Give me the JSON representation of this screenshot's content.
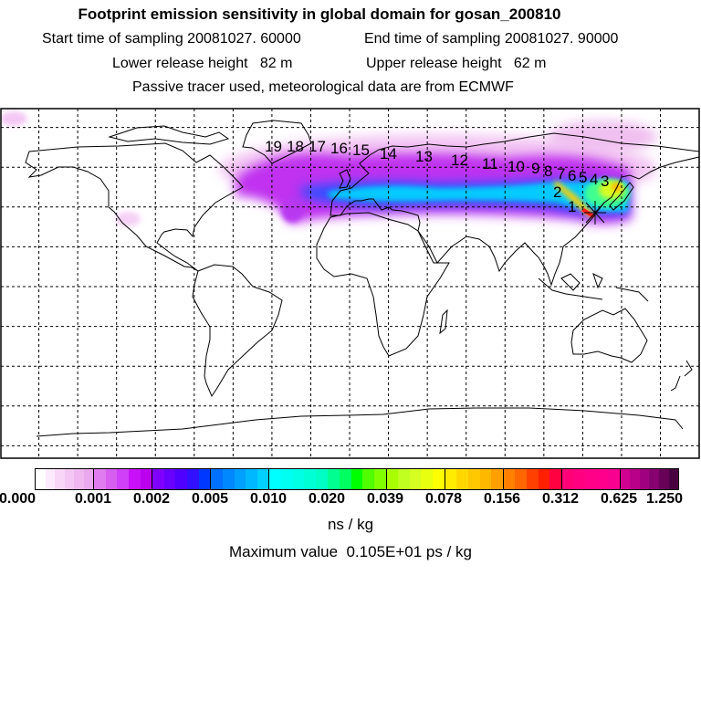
{
  "header": {
    "title": "Footprint emission sensitivity in global domain for gosan_200810",
    "start_time": "Start time of sampling 20081027. 60000",
    "end_time": "End time of sampling 20081027. 90000",
    "lower_height": "Lower release height   82 m",
    "upper_height": "Upper release height   62 m",
    "tracer_note": "Passive tracer used, meteorological data are from ECMWF"
  },
  "map": {
    "cluster_labels": [
      "1",
      "2",
      "3",
      "4",
      "5",
      "6",
      "7",
      "8",
      "9",
      "10",
      "11",
      "12",
      "13",
      "14",
      "15",
      "16",
      "17",
      "18",
      "19"
    ]
  },
  "colorbar": {
    "ticks": [
      "0.000",
      "0.001",
      "0.002",
      "0.005",
      "0.010",
      "0.020",
      "0.039",
      "0.078",
      "0.156",
      "0.312",
      "0.625",
      "1.250"
    ],
    "unit": "ns / kg",
    "colors": [
      [
        "#ffffff",
        "#fdeafd",
        "#f8d6f8",
        "#f4c6f4",
        "#efb6ef",
        "#eaa8ee"
      ],
      [
        "#e07cf0",
        "#d85ef2",
        "#d040f8",
        "#c810f8",
        "#bb00f0"
      ],
      [
        "#8000ff",
        "#6800ff",
        "#5000ff",
        "#3010ff",
        "#0038ff"
      ],
      [
        "#0070ff",
        "#0088ff",
        "#00a0ff",
        "#00b8ff",
        "#00d0ff"
      ],
      [
        "#00ffff",
        "#00fff2",
        "#00ffe4",
        "#00ffd4",
        "#00ffc4"
      ],
      [
        "#00ff90",
        "#00ff60",
        "#00ff00",
        "#50ff00",
        "#80ff00"
      ],
      [
        "#a8ff00",
        "#c0ff20",
        "#d4ff20",
        "#e8ff10",
        "#ffff00"
      ],
      [
        "#ffec00",
        "#ffd800",
        "#ffc800",
        "#ffb800",
        "#ffa000"
      ],
      [
        "#ff8000",
        "#ff6600",
        "#ff4000",
        "#ff2000",
        "#ff0040"
      ],
      [
        "#ff0078",
        "#ff0080",
        "#ff0088",
        "#ff008c",
        "#f80090"
      ],
      [
        "#d00090",
        "#b80088",
        "#a00080",
        "#880070",
        "#680058",
        "#4a0040"
      ]
    ]
  },
  "max_value": "Maximum value  0.105E+01 ps / kg"
}
